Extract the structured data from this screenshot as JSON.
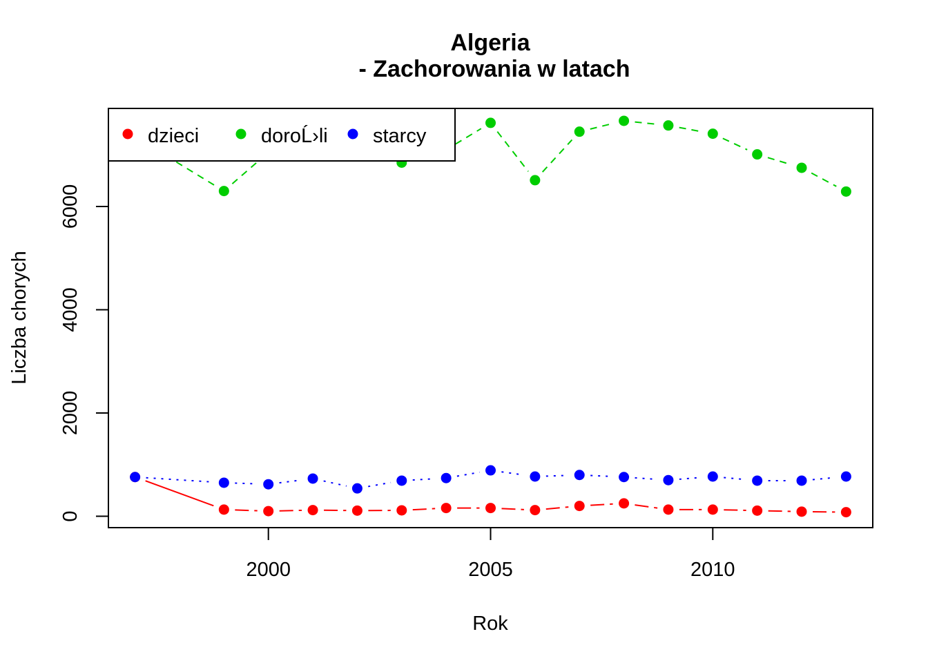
{
  "chart_data": {
    "type": "line",
    "title": "Algeria",
    "subtitle": "- Zachorowania w latach",
    "xlabel": "Rok",
    "ylabel": "Liczba chorych",
    "x_ticks": [
      2000,
      2005,
      2010
    ],
    "y_ticks": [
      0,
      2000,
      4000,
      6000
    ],
    "xlim": [
      1996.4,
      2013.6
    ],
    "ylim": [
      -220,
      7900
    ],
    "grid": false,
    "legend_position": "top-left",
    "series": [
      {
        "name": "dzieci",
        "color": "#ff0000",
        "line_style": "solid-dashed",
        "x": [
          1997,
          1999,
          2000,
          2001,
          2002,
          2003,
          2004,
          2005,
          2006,
          2007,
          2008,
          2009,
          2010,
          2011,
          2012,
          2013
        ],
        "y": [
          760,
          130,
          100,
          120,
          110,
          115,
          160,
          160,
          120,
          200,
          250,
          130,
          130,
          110,
          90,
          80
        ]
      },
      {
        "name": "doroĹ›li",
        "color": "#00cd00",
        "line_style": "dashed",
        "x": [
          1997,
          1999,
          2000,
          2001,
          2002,
          2003,
          2004,
          2005,
          2006,
          2007,
          2008,
          2009,
          2010,
          2011,
          2012,
          2013
        ],
        "y": [
          7350,
          6300,
          7050,
          7250,
          7150,
          6850,
          7100,
          7620,
          6510,
          7450,
          7660,
          7570,
          7410,
          7010,
          6750,
          6290
        ]
      },
      {
        "name": "starcy",
        "color": "#0000ff",
        "line_style": "dotted",
        "x": [
          1997,
          1999,
          2000,
          2001,
          2002,
          2003,
          2004,
          2005,
          2006,
          2007,
          2008,
          2009,
          2010,
          2011,
          2012,
          2013
        ],
        "y": [
          760,
          650,
          620,
          730,
          540,
          690,
          740,
          890,
          770,
          800,
          760,
          700,
          770,
          690,
          690,
          770
        ]
      }
    ]
  }
}
